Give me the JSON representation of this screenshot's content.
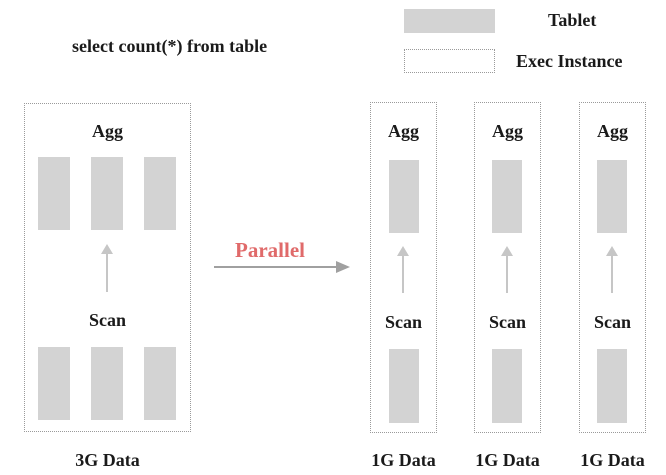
{
  "legend": {
    "tablet_label": "Tablet",
    "exec_label": "Exec Instance"
  },
  "query": "select count(*) from table",
  "left_group": {
    "agg_label": "Agg",
    "scan_label": "Scan",
    "data_label": "3G Data"
  },
  "parallel_label": "Parallel",
  "right_groups": [
    {
      "agg_label": "Agg",
      "scan_label": "Scan",
      "data_label": "1G Data"
    },
    {
      "agg_label": "Agg",
      "scan_label": "Scan",
      "data_label": "1G Data"
    },
    {
      "agg_label": "Agg",
      "scan_label": "Scan",
      "data_label": "1G Data"
    }
  ],
  "colors": {
    "tablet": "#d3d3d3",
    "exec_border": "#9a9a9a",
    "parallel": "#e06a6a",
    "arrow": "#a0a0a0"
  }
}
